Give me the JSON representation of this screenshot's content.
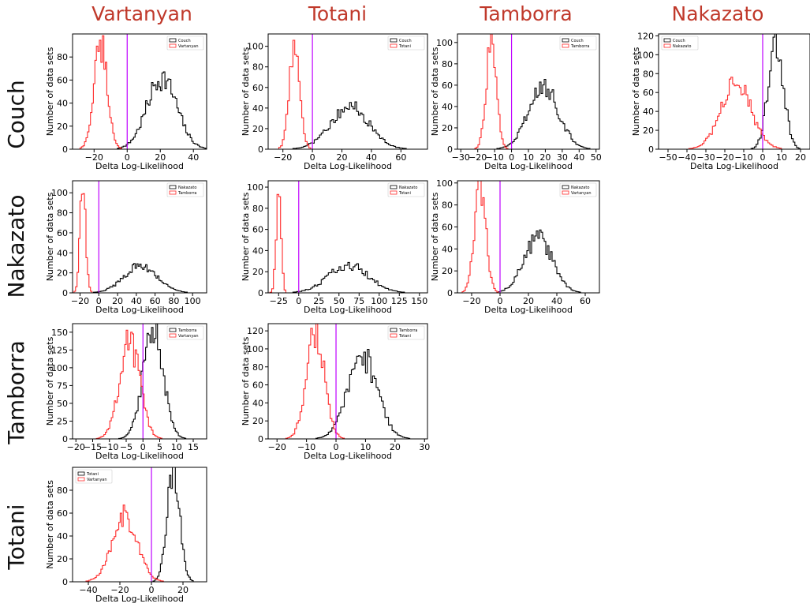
{
  "column_titles": [
    "Vartanyan",
    "Totani",
    "Tamborra",
    "Nakazato"
  ],
  "row_titles": [
    "Couch",
    "Nakazato",
    "Tamborra",
    "Totani"
  ],
  "colors": {
    "black_series": "#000000",
    "red_series": "#ff2a2a",
    "zero_line": "#bf00ff",
    "title": "#c0392b"
  },
  "chart_data": [
    {
      "type": "histogram",
      "row": 0,
      "col": 0,
      "xlabel": "Delta Log-Likelihood",
      "ylabel": "Number of data sets",
      "xlim": [
        -33,
        48
      ],
      "ylim": [
        0,
        100
      ],
      "xticks": [
        -20,
        0,
        20,
        40
      ],
      "yticks": [
        0,
        20,
        40,
        60,
        80
      ],
      "legend": "top-right",
      "series": [
        {
          "name": "Couch",
          "color": "black",
          "mean": 21,
          "sd": 9,
          "peak": 62
        },
        {
          "name": "Vartanyan",
          "color": "red",
          "mean": -16,
          "sd": 4,
          "peak": 92
        }
      ]
    },
    {
      "type": "histogram",
      "row": 0,
      "col": 1,
      "xlabel": "Delta Log-Likelihood",
      "ylabel": "Number of data sets",
      "xlim": [
        -30,
        78
      ],
      "ylim": [
        0,
        112
      ],
      "xticks": [
        -20,
        0,
        20,
        40,
        60
      ],
      "yticks": [
        0,
        20,
        40,
        60,
        80,
        100
      ],
      "legend": "top-right",
      "series": [
        {
          "name": "Couch",
          "color": "black",
          "mean": 25,
          "sd": 13,
          "peak": 42
        },
        {
          "name": "Totani",
          "color": "red",
          "mean": -12,
          "sd": 3.5,
          "peak": 104
        }
      ]
    },
    {
      "type": "histogram",
      "row": 0,
      "col": 2,
      "xlabel": "Delta Log-Likelihood",
      "ylabel": "Number of data sets",
      "xlim": [
        -32,
        52
      ],
      "ylim": [
        0,
        108
      ],
      "xticks": [
        -30,
        -20,
        -10,
        0,
        10,
        20,
        30,
        40,
        50
      ],
      "yticks": [
        0,
        20,
        40,
        60,
        80,
        100
      ],
      "legend": "top-right",
      "series": [
        {
          "name": "Couch",
          "color": "black",
          "mean": 19,
          "sd": 9,
          "peak": 58
        },
        {
          "name": "Tamborra",
          "color": "red",
          "mean": -12,
          "sd": 3,
          "peak": 103
        }
      ]
    },
    {
      "type": "histogram",
      "row": 0,
      "col": 3,
      "xlabel": "Delta Log-Likelihood",
      "ylabel": "Number of data sets",
      "xlim": [
        -55,
        25
      ],
      "ylim": [
        0,
        122
      ],
      "xticks": [
        -50,
        -40,
        -30,
        -20,
        -10,
        0,
        10,
        20
      ],
      "yticks": [
        0,
        20,
        40,
        60,
        80,
        100,
        120
      ],
      "legend": "top-left",
      "series": [
        {
          "name": "Couch",
          "color": "black",
          "mean": 7,
          "sd": 4,
          "peak": 115
        },
        {
          "name": "Nakazato",
          "color": "red",
          "mean": -14,
          "sd": 8,
          "peak": 69
        }
      ]
    },
    {
      "type": "histogram",
      "row": 1,
      "col": 0,
      "xlabel": "Delta Log-Likelihood",
      "ylabel": "Number of data sets",
      "xlim": [
        -28,
        115
      ],
      "ylim": [
        0,
        112
      ],
      "xticks": [
        -20,
        0,
        20,
        40,
        60,
        80,
        100
      ],
      "yticks": [
        0,
        20,
        40,
        60,
        80,
        100
      ],
      "legend": "top-right",
      "series": [
        {
          "name": "Nakazato",
          "color": "black",
          "mean": 45,
          "sd": 18,
          "peak": 27
        },
        {
          "name": "Tamborra",
          "color": "red",
          "mean": -17,
          "sd": 3,
          "peak": 108
        }
      ]
    },
    {
      "type": "histogram",
      "row": 1,
      "col": 1,
      "xlabel": "Delta Log-Likelihood",
      "ylabel": "Number of data sets",
      "xlim": [
        -38,
        160
      ],
      "ylim": [
        0,
        106
      ],
      "xticks": [
        -25,
        0,
        25,
        50,
        75,
        100,
        125,
        150
      ],
      "yticks": [
        0,
        20,
        40,
        60,
        80,
        100
      ],
      "legend": "top-right",
      "series": [
        {
          "name": "Nakazato",
          "color": "black",
          "mean": 62,
          "sd": 25,
          "peak": 26
        },
        {
          "name": "Totani",
          "color": "red",
          "mean": -25,
          "sd": 3,
          "peak": 102
        }
      ]
    },
    {
      "type": "histogram",
      "row": 1,
      "col": 2,
      "xlabel": "Delta Log-Likelihood",
      "ylabel": "Number of data sets",
      "xlim": [
        -30,
        70
      ],
      "ylim": [
        0,
        102
      ],
      "xticks": [
        -20,
        0,
        20,
        40,
        60
      ],
      "yticks": [
        0,
        20,
        40,
        60,
        80,
        100
      ],
      "legend": "top-right",
      "series": [
        {
          "name": "Nakazato",
          "color": "black",
          "mean": 27,
          "sd": 10,
          "peak": 50
        },
        {
          "name": "Vartanyan",
          "color": "red",
          "mean": -14,
          "sd": 4,
          "peak": 98
        }
      ]
    },
    {
      "type": "histogram",
      "row": 2,
      "col": 0,
      "xlabel": "Delta Log-Likelihood",
      "ylabel": "Number of data sets",
      "xlim": [
        -21,
        19
      ],
      "ylim": [
        0,
        162
      ],
      "xticks": [
        -20,
        -15,
        -10,
        -5,
        0,
        5,
        10,
        15
      ],
      "yticks": [
        0,
        25,
        50,
        75,
        100,
        125,
        150
      ],
      "legend": "top-right",
      "series": [
        {
          "name": "Tamborra",
          "color": "black",
          "mean": 3,
          "sd": 3,
          "peak": 155
        },
        {
          "name": "Vartanyan",
          "color": "red",
          "mean": -4,
          "sd": 3,
          "peak": 137
        }
      ]
    },
    {
      "type": "histogram",
      "row": 2,
      "col": 1,
      "xlabel": "Delta Log-Likelihood",
      "ylabel": "Number of data sets",
      "xlim": [
        -23,
        31
      ],
      "ylim": [
        0,
        128
      ],
      "xticks": [
        -20,
        -10,
        0,
        10,
        20,
        30
      ],
      "yticks": [
        0,
        20,
        40,
        60,
        80,
        100,
        120
      ],
      "legend": "top-right",
      "series": [
        {
          "name": "Tamborra",
          "color": "black",
          "mean": 9,
          "sd": 5,
          "peak": 92
        },
        {
          "name": "Totani",
          "color": "red",
          "mean": -7,
          "sd": 3,
          "peak": 122
        }
      ]
    },
    {
      "type": "histogram",
      "row": 3,
      "col": 0,
      "xlabel": "Delta Log-Likelihood",
      "ylabel": "Number of data sets",
      "xlim": [
        -50,
        35
      ],
      "ylim": [
        0,
        100
      ],
      "xticks": [
        -40,
        -20,
        0,
        20
      ],
      "yticks": [
        0,
        20,
        40,
        60,
        80
      ],
      "legend": "top-left",
      "series": [
        {
          "name": "Totani",
          "color": "black",
          "mean": 14,
          "sd": 4,
          "peak": 95
        },
        {
          "name": "Vartanyan",
          "color": "red",
          "mean": -17,
          "sd": 8,
          "peak": 58
        }
      ]
    }
  ]
}
